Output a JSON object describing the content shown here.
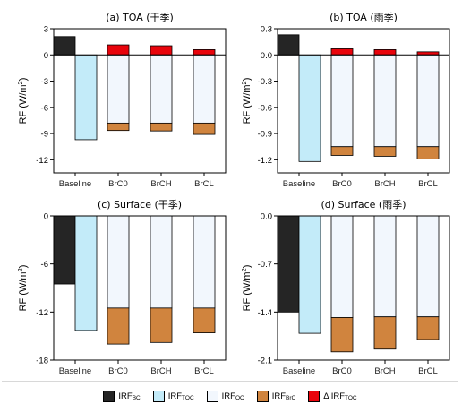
{
  "colors": {
    "IRF_BC": "#252525",
    "IRF_TOC": "#c3ebf9",
    "IRF_OC": "#f2f7fd",
    "IRF_BrC": "#d0843e",
    "dIRF_TOC": "#e8040c"
  },
  "legend": [
    {
      "key": "IRF_BC",
      "main": "IRF",
      "sub": "BC",
      "prefix": ""
    },
    {
      "key": "IRF_TOC",
      "main": "IRF",
      "sub": "TOC",
      "prefix": ""
    },
    {
      "key": "IRF_OC",
      "main": "IRF",
      "sub": "OC",
      "prefix": ""
    },
    {
      "key": "IRF_BrC",
      "main": "IRF",
      "sub": "BrC",
      "prefix": ""
    },
    {
      "key": "dIRF_TOC",
      "main": "IRF",
      "sub": "TOC",
      "prefix": "Δ "
    }
  ],
  "ylabel_main": "RF (W/m",
  "ylabel_sup": "2",
  "ylabel_end": ")",
  "chart_data": [
    {
      "type": "bar",
      "title": "(a) TOA (干季)",
      "categories": [
        "Baseline",
        "BrC0",
        "BrCH",
        "BrCL"
      ],
      "ylim": [
        -13.5,
        3
      ],
      "yticks": [
        3,
        0,
        -3,
        -6,
        -9,
        -12
      ],
      "baseline_bars": [
        {
          "component": "IRF_BC",
          "value": 2.1
        },
        {
          "component": "IRF_TOC",
          "value": -9.7
        }
      ],
      "stacks": [
        {
          "category": "BrC0",
          "dIRF_TOC": 1.15,
          "IRF_OC": -7.8,
          "IRF_BrC": -0.85
        },
        {
          "category": "BrCH",
          "dIRF_TOC": 1.05,
          "IRF_OC": -7.8,
          "IRF_BrC": -0.9
        },
        {
          "category": "BrCL",
          "dIRF_TOC": 0.6,
          "IRF_OC": -7.8,
          "IRF_BrC": -1.3
        }
      ]
    },
    {
      "type": "bar",
      "title": "(b) TOA (雨季)",
      "categories": [
        "Baseline",
        "BrC0",
        "BrCH",
        "BrCL"
      ],
      "ylim": [
        -1.35,
        0.3
      ],
      "yticks": [
        0.3,
        0.0,
        -0.3,
        -0.6,
        -0.9,
        -1.2
      ],
      "baseline_bars": [
        {
          "component": "IRF_BC",
          "value": 0.23
        },
        {
          "component": "IRF_TOC",
          "value": -1.22
        }
      ],
      "stacks": [
        {
          "category": "BrC0",
          "dIRF_TOC": 0.07,
          "IRF_OC": -1.05,
          "IRF_BrC": -0.1
        },
        {
          "category": "BrCH",
          "dIRF_TOC": 0.06,
          "IRF_OC": -1.05,
          "IRF_BrC": -0.11
        },
        {
          "category": "BrCL",
          "dIRF_TOC": 0.035,
          "IRF_OC": -1.05,
          "IRF_BrC": -0.14
        }
      ]
    },
    {
      "type": "bar",
      "title": "(c) Surface (干季)",
      "categories": [
        "Baseline",
        "BrC0",
        "BrCH",
        "BrCL"
      ],
      "ylim": [
        -18,
        0
      ],
      "yticks": [
        0,
        -6,
        -12,
        -18
      ],
      "baseline_bars": [
        {
          "component": "IRF_BC",
          "value": -8.5
        },
        {
          "component": "IRF_TOC",
          "value": -14.3
        }
      ],
      "stacks": [
        {
          "category": "BrC0",
          "dIRF_TOC": 0,
          "IRF_OC": -11.5,
          "IRF_BrC": -4.5
        },
        {
          "category": "BrCH",
          "dIRF_TOC": 0,
          "IRF_OC": -11.5,
          "IRF_BrC": -4.3
        },
        {
          "category": "BrCL",
          "dIRF_TOC": 0,
          "IRF_OC": -11.5,
          "IRF_BrC": -3.1
        }
      ]
    },
    {
      "type": "bar",
      "title": "(d) Surface (雨季)",
      "categories": [
        "Baseline",
        "BrC0",
        "BrCH",
        "BrCL"
      ],
      "ylim": [
        -2.1,
        0
      ],
      "yticks": [
        0,
        -0.7,
        -1.4,
        -2.1
      ],
      "baseline_bars": [
        {
          "component": "IRF_BC",
          "value": -1.4
        },
        {
          "component": "IRF_TOC",
          "value": -1.71
        }
      ],
      "stacks": [
        {
          "category": "BrC0",
          "dIRF_TOC": 0,
          "IRF_OC": -1.48,
          "IRF_BrC": -0.5
        },
        {
          "category": "BrCH",
          "dIRF_TOC": 0,
          "IRF_OC": -1.47,
          "IRF_BrC": -0.47
        },
        {
          "category": "BrCL",
          "dIRF_TOC": 0,
          "IRF_OC": -1.47,
          "IRF_BrC": -0.33
        }
      ]
    }
  ]
}
